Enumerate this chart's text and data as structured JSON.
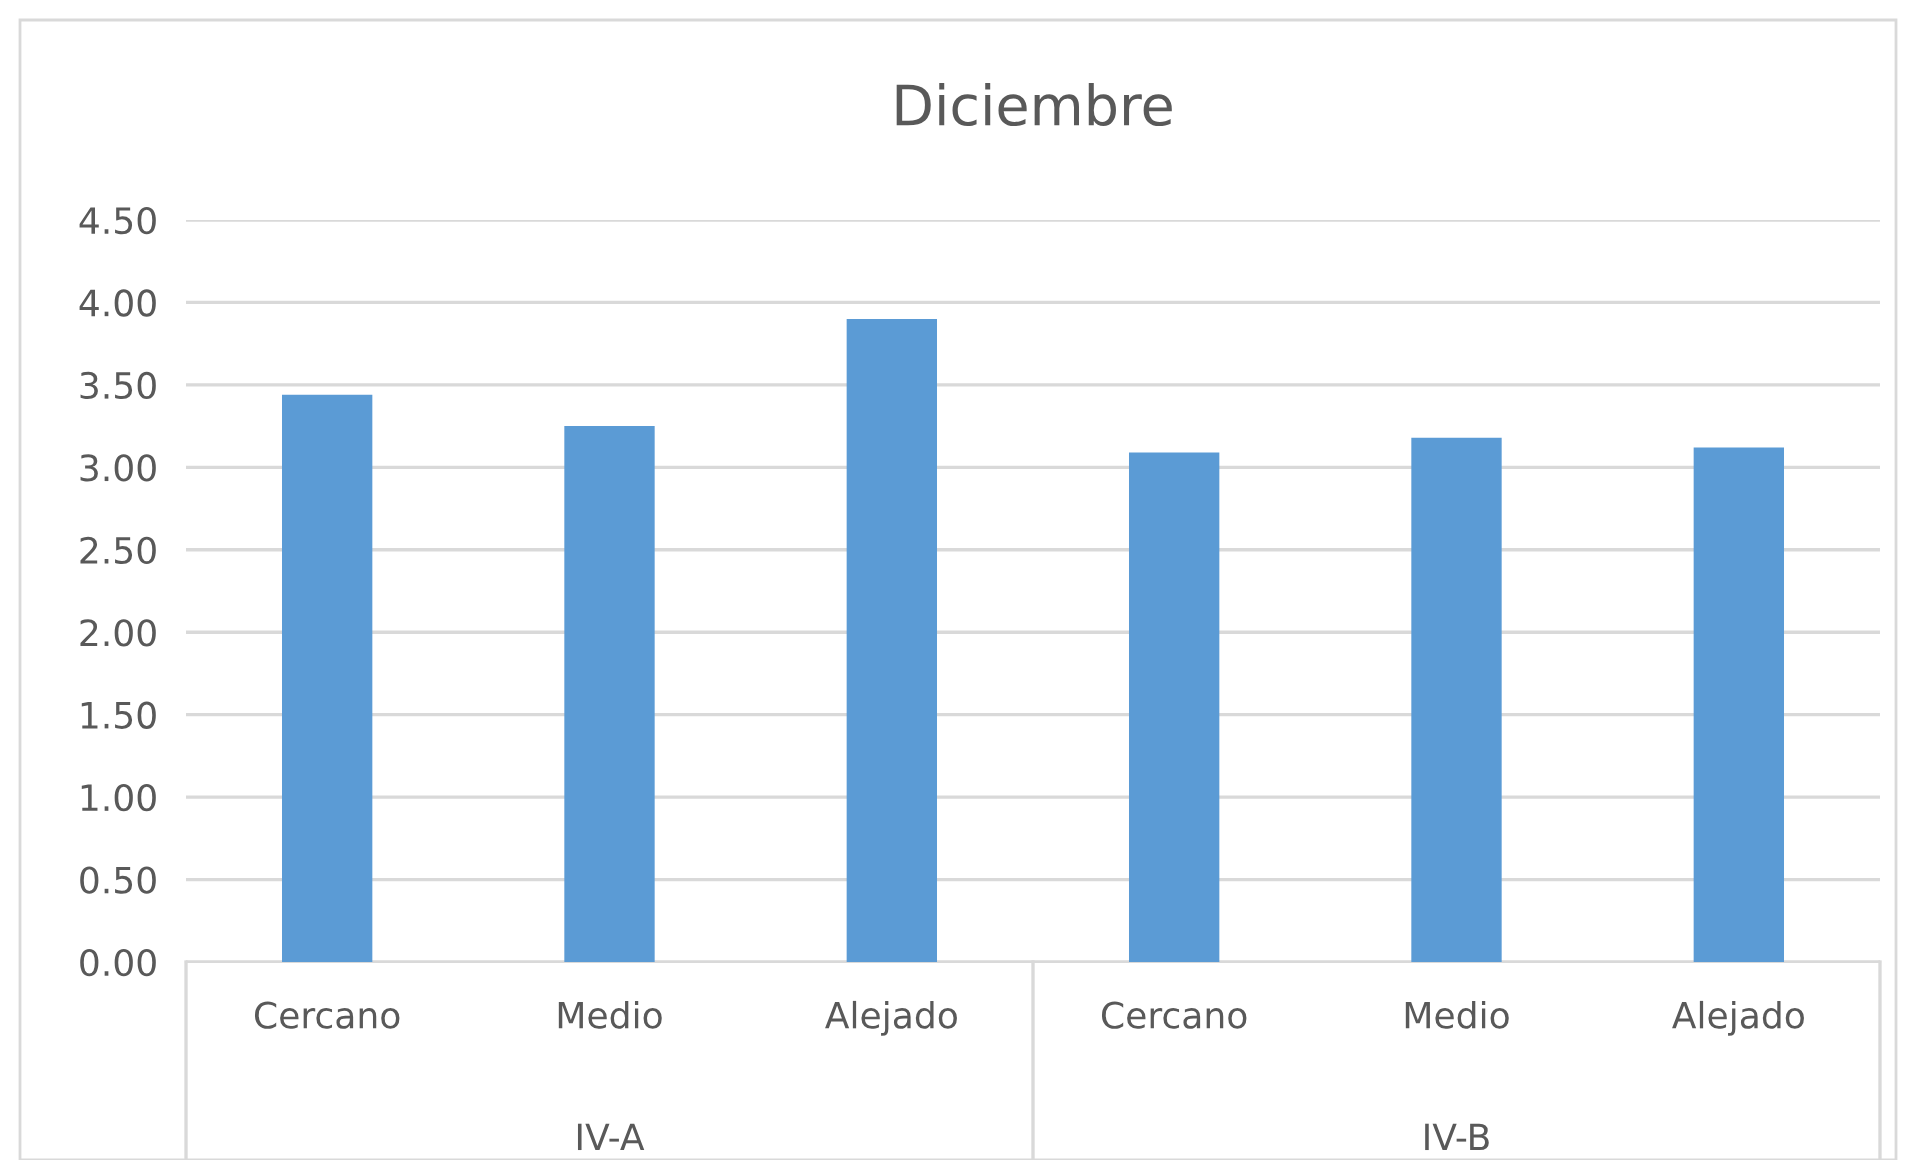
{
  "chart_data": {
    "type": "bar",
    "title": "Diciembre",
    "categories": [
      "Cercano",
      "Medio",
      "Alejado",
      "Cercano",
      "Medio",
      "Alejado"
    ],
    "values": [
      3.44,
      3.25,
      3.9,
      3.09,
      3.18,
      3.12
    ],
    "color": "#5b9bd5",
    "annotations": [
      "IV-A",
      "IV-B"
    ],
    "ylim": [
      0,
      4.5
    ],
    "yticks": [
      {
        "value": 0,
        "label": "0.00"
      },
      {
        "value": 0.5,
        "label": "0.50"
      },
      {
        "value": 1,
        "label": "1.00"
      },
      {
        "value": 1.5,
        "label": "1.50"
      },
      {
        "value": 2,
        "label": "2.00"
      },
      {
        "value": 2.5,
        "label": "2.50"
      },
      {
        "value": 3,
        "label": "3.00"
      },
      {
        "value": 3.5,
        "label": "3.50"
      },
      {
        "value": 4,
        "label": "4.00"
      },
      {
        "value": 4.5,
        "label": "4.50"
      }
    ],
    "grid": "y",
    "legend": false
  }
}
